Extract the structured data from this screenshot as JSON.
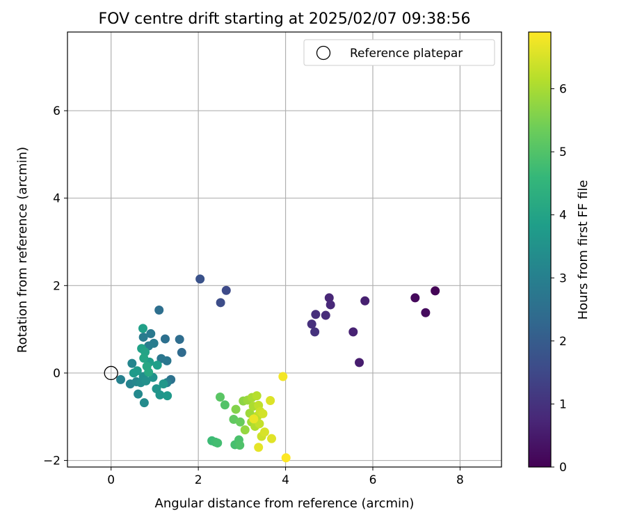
{
  "chart_data": {
    "type": "scatter",
    "title": "FOV centre drift starting at 2025/02/07 09:38:56",
    "xlabel": "Angular distance from reference (arcmin)",
    "ylabel": "Rotation from reference (arcmin)",
    "xlim": [
      -1.0,
      8.95
    ],
    "ylim": [
      -2.15,
      7.8
    ],
    "xticks": [
      0,
      2,
      4,
      6,
      8
    ],
    "xtick_labels": [
      "0",
      "2",
      "4",
      "6",
      "8"
    ],
    "yticks": [
      -2,
      0,
      2,
      4,
      6
    ],
    "ytick_labels": [
      "−2",
      "0",
      "2",
      "4",
      "6"
    ],
    "grid": true,
    "legend": {
      "position": "top-right",
      "entries": [
        "Reference platepar"
      ]
    },
    "reference_point": {
      "x": 0.0,
      "y": 0.0,
      "label": "Reference platepar"
    },
    "colorbar": {
      "label": "Hours from first FF file",
      "colormap": "viridis",
      "range": [
        0,
        6.9
      ],
      "ticks": [
        0,
        1,
        2,
        3,
        4,
        5,
        6
      ],
      "tick_labels": [
        "0",
        "1",
        "2",
        "3",
        "4",
        "5",
        "6"
      ]
    },
    "points": [
      {
        "x": 7.43,
        "y": 1.88,
        "hours": 0.05
      },
      {
        "x": 6.97,
        "y": 1.72,
        "hours": 0.15
      },
      {
        "x": 7.21,
        "y": 1.38,
        "hours": 0.2
      },
      {
        "x": 5.69,
        "y": 0.24,
        "hours": 0.55
      },
      {
        "x": 5.82,
        "y": 1.65,
        "hours": 0.6
      },
      {
        "x": 5.55,
        "y": 0.94,
        "hours": 0.65
      },
      {
        "x": 5.0,
        "y": 1.72,
        "hours": 0.75
      },
      {
        "x": 5.03,
        "y": 1.56,
        "hours": 0.8
      },
      {
        "x": 4.92,
        "y": 1.32,
        "hours": 0.85
      },
      {
        "x": 4.69,
        "y": 1.34,
        "hours": 0.9
      },
      {
        "x": 4.6,
        "y": 1.12,
        "hours": 0.95
      },
      {
        "x": 4.67,
        "y": 0.94,
        "hours": 1.0
      },
      {
        "x": 2.64,
        "y": 1.89,
        "hours": 1.55
      },
      {
        "x": 2.51,
        "y": 1.61,
        "hours": 1.6
      },
      {
        "x": 2.04,
        "y": 2.15,
        "hours": 1.75
      },
      {
        "x": 1.62,
        "y": 0.47,
        "hours": 2.4
      },
      {
        "x": 1.57,
        "y": 0.77,
        "hours": 2.45
      },
      {
        "x": 1.1,
        "y": 1.44,
        "hours": 2.5
      },
      {
        "x": 1.24,
        "y": 0.78,
        "hours": 2.55
      },
      {
        "x": 1.37,
        "y": -0.15,
        "hours": 2.6
      },
      {
        "x": 1.28,
        "y": 0.28,
        "hours": 2.7
      },
      {
        "x": 1.15,
        "y": 0.33,
        "hours": 2.75
      },
      {
        "x": 0.91,
        "y": 0.9,
        "hours": 2.8
      },
      {
        "x": 0.74,
        "y": 0.82,
        "hours": 2.85
      },
      {
        "x": 0.98,
        "y": 0.68,
        "hours": 2.9
      },
      {
        "x": 0.86,
        "y": 0.62,
        "hours": 2.95
      },
      {
        "x": 1.28,
        "y": -0.22,
        "hours": 3.0
      },
      {
        "x": 0.22,
        "y": -0.15,
        "hours": 3.05
      },
      {
        "x": 0.44,
        "y": -0.25,
        "hours": 3.1
      },
      {
        "x": 0.48,
        "y": 0.22,
        "hours": 3.15
      },
      {
        "x": 0.58,
        "y": -0.2,
        "hours": 3.2
      },
      {
        "x": 0.62,
        "y": -0.48,
        "hours": 3.25
      },
      {
        "x": 0.76,
        "y": -0.68,
        "hours": 3.3
      },
      {
        "x": 0.68,
        "y": -0.22,
        "hours": 3.35
      },
      {
        "x": 0.74,
        "y": -0.08,
        "hours": 3.4
      },
      {
        "x": 0.8,
        "y": -0.18,
        "hours": 3.45
      },
      {
        "x": 0.96,
        "y": -0.1,
        "hours": 3.5
      },
      {
        "x": 1.04,
        "y": -0.36,
        "hours": 3.55
      },
      {
        "x": 1.12,
        "y": -0.5,
        "hours": 3.6
      },
      {
        "x": 1.2,
        "y": -0.25,
        "hours": 3.65
      },
      {
        "x": 1.29,
        "y": -0.52,
        "hours": 3.7
      },
      {
        "x": 0.52,
        "y": 0.0,
        "hours": 3.72
      },
      {
        "x": 0.6,
        "y": 0.05,
        "hours": 3.75
      },
      {
        "x": 0.88,
        "y": 0.25,
        "hours": 3.8
      },
      {
        "x": 1.06,
        "y": 0.18,
        "hours": 3.85
      },
      {
        "x": 0.73,
        "y": 1.02,
        "hours": 3.9
      },
      {
        "x": 0.7,
        "y": 0.56,
        "hours": 3.95
      },
      {
        "x": 0.78,
        "y": 0.48,
        "hours": 4.0
      },
      {
        "x": 0.75,
        "y": 0.34,
        "hours": 4.05
      },
      {
        "x": 0.82,
        "y": 0.15,
        "hours": 4.1
      },
      {
        "x": 0.86,
        "y": 0.02,
        "hours": 4.15
      },
      {
        "x": 2.31,
        "y": -1.55,
        "hours": 4.7
      },
      {
        "x": 2.39,
        "y": -1.58,
        "hours": 4.75
      },
      {
        "x": 2.44,
        "y": -1.6,
        "hours": 4.8
      },
      {
        "x": 2.84,
        "y": -1.64,
        "hours": 4.85
      },
      {
        "x": 2.93,
        "y": -1.53,
        "hours": 4.9
      },
      {
        "x": 2.95,
        "y": -1.65,
        "hours": 4.95
      },
      {
        "x": 2.61,
        "y": -0.73,
        "hours": 5.0
      },
      {
        "x": 2.5,
        "y": -0.55,
        "hours": 5.1
      },
      {
        "x": 2.81,
        "y": -1.06,
        "hours": 5.2
      },
      {
        "x": 2.96,
        "y": -1.12,
        "hours": 5.3
      },
      {
        "x": 2.86,
        "y": -0.83,
        "hours": 5.6
      },
      {
        "x": 3.03,
        "y": -0.64,
        "hours": 5.7
      },
      {
        "x": 3.07,
        "y": -1.3,
        "hours": 5.8
      },
      {
        "x": 3.13,
        "y": -0.62,
        "hours": 5.85
      },
      {
        "x": 3.18,
        "y": -0.92,
        "hours": 5.9
      },
      {
        "x": 3.22,
        "y": -1.12,
        "hours": 5.95
      },
      {
        "x": 3.23,
        "y": -0.56,
        "hours": 6.0
      },
      {
        "x": 3.26,
        "y": -0.76,
        "hours": 6.05
      },
      {
        "x": 3.3,
        "y": -1.22,
        "hours": 6.1
      },
      {
        "x": 3.34,
        "y": -0.52,
        "hours": 6.15
      },
      {
        "x": 3.36,
        "y": -0.98,
        "hours": 6.2
      },
      {
        "x": 3.38,
        "y": -0.74,
        "hours": 6.25
      },
      {
        "x": 3.4,
        "y": -1.16,
        "hours": 6.3
      },
      {
        "x": 3.42,
        "y": -0.88,
        "hours": 6.35
      },
      {
        "x": 3.45,
        "y": -1.45,
        "hours": 6.4
      },
      {
        "x": 3.48,
        "y": -0.93,
        "hours": 6.45
      },
      {
        "x": 3.52,
        "y": -1.35,
        "hours": 6.5
      },
      {
        "x": 3.65,
        "y": -0.63,
        "hours": 6.55
      },
      {
        "x": 3.68,
        "y": -1.5,
        "hours": 6.6
      },
      {
        "x": 3.38,
        "y": -1.7,
        "hours": 6.65
      },
      {
        "x": 3.27,
        "y": -1.05,
        "hours": 6.7
      },
      {
        "x": 3.94,
        "y": -0.08,
        "hours": 6.8
      },
      {
        "x": 4.01,
        "y": -1.94,
        "hours": 6.9
      }
    ]
  }
}
